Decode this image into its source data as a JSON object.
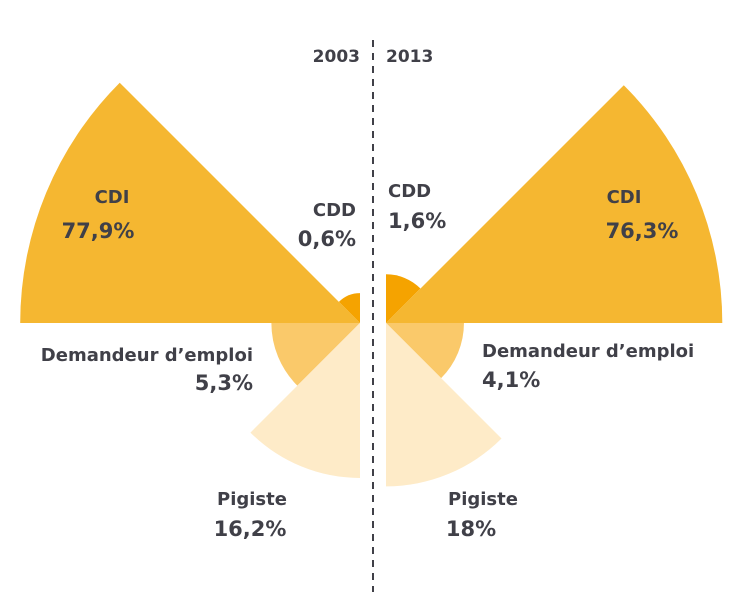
{
  "chart_data": {
    "type": "polar-area",
    "panels": [
      {
        "year": "2003",
        "slices": [
          {
            "label": "CDI",
            "value": 77.9,
            "value_label": "77,9%",
            "color": "#F5B731"
          },
          {
            "label": "CDD",
            "value": 0.6,
            "value_label": "0,6%",
            "color": "#F5A300"
          },
          {
            "label": "Demandeur d’emploi",
            "value": 5.3,
            "value_label": "5,3%",
            "color": "#FAC96A"
          },
          {
            "label": "Pigiste",
            "value": 16.2,
            "value_label": "16,2%",
            "color": "#FEEBC8"
          }
        ]
      },
      {
        "year": "2013",
        "slices": [
          {
            "label": "CDI",
            "value": 76.3,
            "value_label": "76,3%",
            "color": "#F5B731"
          },
          {
            "label": "CDD",
            "value": 1.6,
            "value_label": "1,6%",
            "color": "#F5A300"
          },
          {
            "label": "Demandeur d’emploi",
            "value": 4.1,
            "value_label": "4,1%",
            "color": "#FAC96A"
          },
          {
            "label": "Pigiste",
            "value": 18,
            "value_label": "18%",
            "color": "#FEEBC8"
          }
        ]
      }
    ],
    "divider_style": "dashed"
  }
}
